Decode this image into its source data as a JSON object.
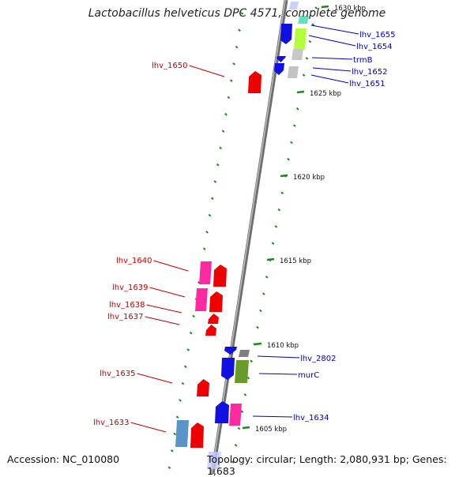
{
  "title": "Lactobacillus helveticus DPC 4571, complete genome",
  "accession": "Accession: NC_010080",
  "topology": "Topology: circular; Length: 2,080,931 bp; Genes: 1,683",
  "colors": {
    "forward_label": "#c00000",
    "reverse_label": "#0000c0",
    "tick": "#1a8a1a",
    "backbone": "#888888"
  },
  "scale_labels": [
    {
      "text": "1630 kbp"
    },
    {
      "text": "1625 kbp"
    },
    {
      "text": "1620 kbp"
    },
    {
      "text": "1615 kbp"
    },
    {
      "text": "1610 kbp"
    },
    {
      "text": "1605 kbp"
    }
  ],
  "genes_right": [
    {
      "label": "lhv_1655"
    },
    {
      "label": "lhv_1654"
    },
    {
      "label": "trmB"
    },
    {
      "label": "lhv_1652"
    },
    {
      "label": "lhv_1651"
    },
    {
      "label": "lhv_2802"
    },
    {
      "label": "murC"
    },
    {
      "label": "lhv_1634"
    }
  ],
  "genes_left": [
    {
      "label": "lhv_1650"
    },
    {
      "label": "lhv_1640"
    },
    {
      "label": "lhv_1639"
    },
    {
      "label": "lhv_1638"
    },
    {
      "label": "lhv_1637"
    },
    {
      "label": "lhv_1635"
    },
    {
      "label": "lhv_1633"
    }
  ]
}
